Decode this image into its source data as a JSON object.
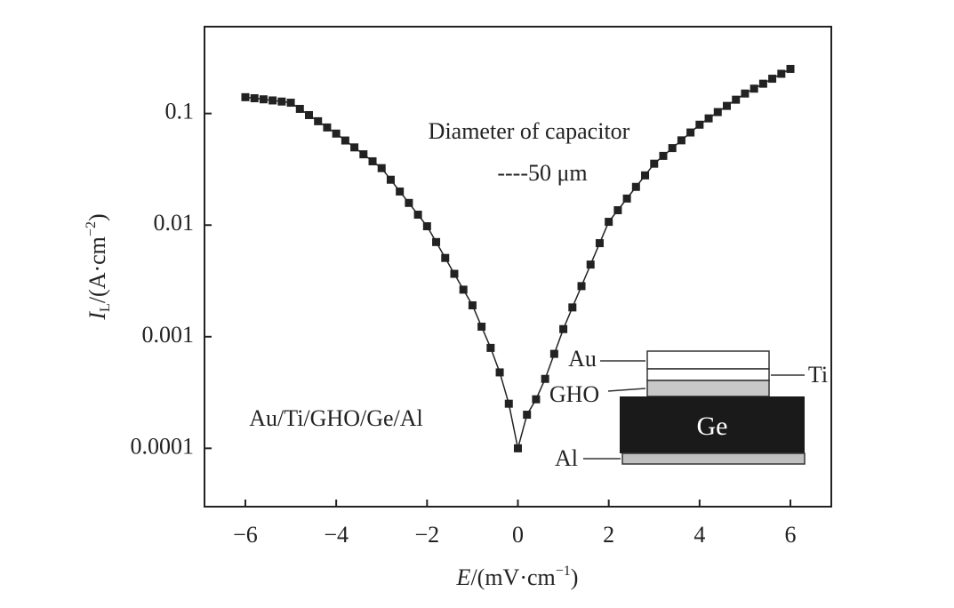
{
  "chart_data": {
    "type": "scatter",
    "x": [
      -6,
      -5.8,
      -5.6,
      -5.4,
      -5.2,
      -5,
      -4.8,
      -4.6,
      -4.4,
      -4.2,
      -4,
      -3.8,
      -3.6,
      -3.4,
      -3.2,
      -3,
      -2.8,
      -2.6,
      -2.4,
      -2.2,
      -2,
      -1.8,
      -1.6,
      -1.4,
      -1.2,
      -1,
      -0.8,
      -0.6,
      -0.4,
      -0.2,
      0,
      0.2,
      0.4,
      0.6,
      0.8,
      1,
      1.2,
      1.4,
      1.6,
      1.8,
      2,
      2.2,
      2.4,
      2.6,
      2.8,
      3,
      3.2,
      3.4,
      3.6,
      3.8,
      4,
      4.2,
      4.4,
      4.6,
      4.8,
      5,
      5.2,
      5.4,
      5.6,
      5.8,
      6
    ],
    "series": [
      {
        "color": "#222222",
        "values": [
          0.14,
          0.137,
          0.134,
          0.131,
          0.128,
          0.125,
          0.11,
          0.0968,
          0.0853,
          0.075,
          0.0661,
          0.0573,
          0.0497,
          0.0431,
          0.0373,
          0.0324,
          0.0255,
          0.02,
          0.0158,
          0.0124,
          0.00977,
          0.00705,
          0.00508,
          0.00366,
          0.00264,
          0.00191,
          0.00123,
          0.000794,
          0.000479,
          0.000251,
          0.0001,
          0.0002,
          0.000275,
          0.000419,
          0.000702,
          0.00117,
          0.00183,
          0.00284,
          0.00443,
          0.00689,
          0.0107,
          0.0136,
          0.0173,
          0.022,
          0.0279,
          0.0355,
          0.0417,
          0.049,
          0.0575,
          0.0676,
          0.0794,
          0.0904,
          0.103,
          0.117,
          0.133,
          0.151,
          0.167,
          0.185,
          0.205,
          0.227,
          0.251
        ]
      }
    ],
    "xlim": [
      -6.9,
      6.9
    ],
    "xticks": [
      {
        "value": -6,
        "label": "−6"
      },
      {
        "value": -4,
        "label": "−4"
      },
      {
        "value": -2,
        "label": "−2"
      },
      0,
      2,
      4,
      6
    ],
    "ylim": [
      3e-05,
      0.6
    ],
    "yticks": [
      0.0001,
      0.001,
      0.01,
      0.1
    ],
    "log_y": true,
    "xlabel_parts": [
      "E",
      "/(mV·cm",
      "−1",
      ")"
    ],
    "ylabel_parts": [
      "I",
      "L",
      "/(A·cm",
      "−2",
      ")"
    ],
    "annotations": [
      "Diameter of capacitor",
      "----50 μm",
      "Au/Ti/GHO/Ge/Al"
    ],
    "inset_labels": [
      "Au",
      "Ti",
      "GHO",
      "Ge",
      "Al"
    ]
  }
}
